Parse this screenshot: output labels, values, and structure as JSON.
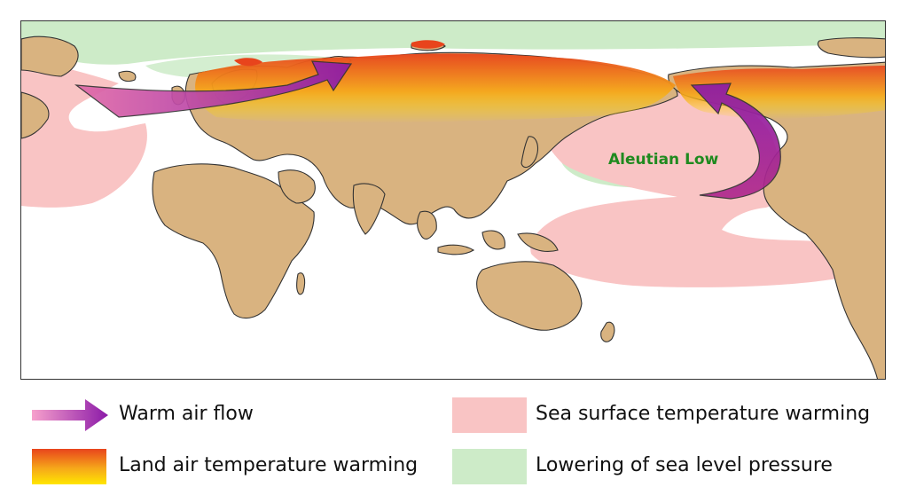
{
  "map": {
    "region_label": "Aleutian Low"
  },
  "legend": {
    "warm_air_flow": "Warm air flow",
    "land_air_warming": "Land air temperature warming",
    "sea_surface_warming": "Sea surface temperature warming",
    "sea_level_pressure": "Lowering of sea level pressure"
  },
  "colors": {
    "land": "#d9b380",
    "ocean": "#ffffff",
    "sea_warming": "#f9c4c4",
    "pressure_low": "#cdebc8",
    "warm_air_start": "#f58ac0",
    "warm_air_end": "#8b1aa8",
    "land_warming_top": "#e8441c",
    "land_warming_bottom": "#ffe600"
  }
}
